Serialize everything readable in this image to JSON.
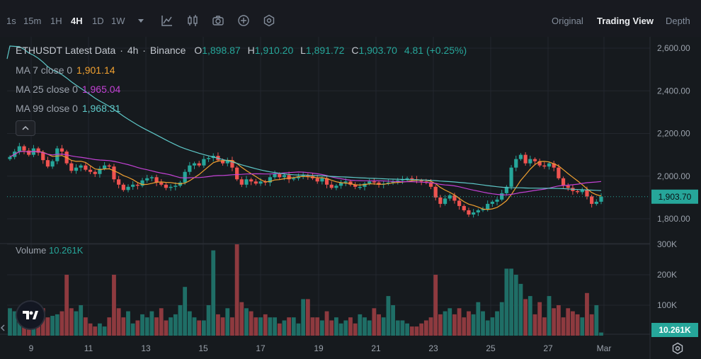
{
  "toolbar": {
    "timeframes": [
      "1s",
      "15m",
      "1H",
      "4H",
      "1D",
      "1W"
    ],
    "active_timeframe": "4H",
    "more_icon": "caret-down-icon",
    "tools": [
      "indicator-icon",
      "candle-type-icon",
      "camera-icon",
      "plus-circle-icon",
      "settings-hex-icon"
    ],
    "views": [
      "Original",
      "Trading View",
      "Depth"
    ],
    "active_view": "Trading View"
  },
  "legend": {
    "symbol": "ETHUSDT Latest Data",
    "interval": "4h",
    "exchange": "Binance",
    "open_label": "O",
    "open": "1,898.87",
    "high_label": "H",
    "high": "1,910.20",
    "low_label": "L",
    "low": "1,891.72",
    "close_label": "C",
    "close": "1,903.70",
    "change": "4.81 (+0.25%)",
    "ma7_label": "MA 7 close 0",
    "ma7": "1,901.14",
    "ma25_label": "MA 25 close 0",
    "ma25": "1,965.04",
    "ma99_label": "MA 99 close 0",
    "ma99": "1,968.31",
    "collapse_icon": "chevron-up-icon"
  },
  "volume_legend": {
    "label": "Volume",
    "value": "10.261K"
  },
  "colors": {
    "up": "#26a69a",
    "down": "#ef5350",
    "ma7": "#f0a030",
    "ma25": "#c341d4",
    "ma99": "#5ec8c8",
    "vol_up": "#1f6e66",
    "vol_down": "#8e3a3f"
  },
  "chart_data": {
    "type": "candlestick",
    "title": "ETHUSDT Latest Data · 4h · Binance",
    "price_axis": {
      "ticks": [
        "2,600.00",
        "2,400.00",
        "2,200.00",
        "2,000.00",
        "1,800.00"
      ],
      "tick_values": [
        2600,
        2400,
        2200,
        2000,
        1800
      ],
      "range": [
        1700,
        2660
      ]
    },
    "volume_axis": {
      "ticks": [
        "300K",
        "200K",
        "100K"
      ],
      "tick_values": [
        300000,
        200000,
        100000
      ],
      "range": [
        0,
        310000
      ]
    },
    "x_ticks": [
      "9",
      "11",
      "13",
      "15",
      "17",
      "19",
      "21",
      "23",
      "25",
      "27",
      "Mar"
    ],
    "last_price": "1,903.70",
    "last_price_value": 1903.7,
    "last_volume": "10.261K",
    "close": [
      2090,
      2115,
      2140,
      2120,
      2100,
      2130,
      2110,
      2075,
      2045,
      2070,
      2130,
      2115,
      2060,
      2025,
      2040,
      2050,
      2030,
      2020,
      2010,
      2035,
      2050,
      2045,
      1985,
      1960,
      1935,
      1950,
      1960,
      1955,
      1980,
      1990,
      1995,
      1970,
      1960,
      1945,
      1950,
      1955,
      1970,
      2020,
      2050,
      2060,
      2050,
      2080,
      2085,
      2095,
      2075,
      2060,
      2075,
      2040,
      1985,
      1960,
      1985,
      1975,
      1965,
      1975,
      1970,
      1995,
      2010,
      1995,
      2005,
      1985,
      1990,
      2000,
      2005,
      2000,
      1990,
      1975,
      1990,
      1960,
      1945,
      1955,
      1970,
      1975,
      1960,
      1950,
      1950,
      1965,
      1975,
      1970,
      1960,
      1965,
      1970,
      1975,
      1980,
      1985,
      1990,
      1985,
      1980,
      1975,
      1970,
      1950,
      1900,
      1870,
      1895,
      1910,
      1885,
      1860,
      1840,
      1820,
      1830,
      1840,
      1845,
      1870,
      1880,
      1890,
      1920,
      1950,
      2040,
      2080,
      2100,
      2060,
      2080,
      2070,
      2050,
      2045,
      2060,
      2040,
      1990,
      1955,
      1945,
      1930,
      1925,
      1935,
      1905,
      1870,
      1880,
      1903.7
    ],
    "volume": [
      90000,
      80000,
      70000,
      60000,
      70000,
      60000,
      80000,
      90000,
      60000,
      65000,
      70000,
      80000,
      200000,
      90000,
      80000,
      100000,
      60000,
      40000,
      30000,
      40000,
      30000,
      60000,
      200000,
      90000,
      60000,
      80000,
      40000,
      50000,
      70000,
      60000,
      80000,
      60000,
      90000,
      50000,
      60000,
      70000,
      100000,
      160000,
      80000,
      60000,
      50000,
      50000,
      100000,
      280000,
      70000,
      60000,
      90000,
      60000,
      300000,
      110000,
      90000,
      80000,
      60000,
      60000,
      70000,
      60000,
      60000,
      40000,
      50000,
      60000,
      60000,
      40000,
      120000,
      120000,
      60000,
      60000,
      50000,
      80000,
      50000,
      60000,
      40000,
      50000,
      60000,
      40000,
      70000,
      60000,
      50000,
      90000,
      70000,
      60000,
      130000,
      100000,
      50000,
      50000,
      40000,
      30000,
      30000,
      40000,
      50000,
      60000,
      200000,
      70000,
      80000,
      90000,
      70000,
      90000,
      60000,
      80000,
      70000,
      110000,
      80000,
      50000,
      60000,
      80000,
      110000,
      220000,
      220000,
      200000,
      170000,
      120000,
      130000,
      70000,
      110000,
      60000,
      130000,
      90000,
      100000,
      60000,
      90000,
      80000,
      70000,
      60000,
      140000,
      70000,
      100000,
      10261
    ]
  }
}
